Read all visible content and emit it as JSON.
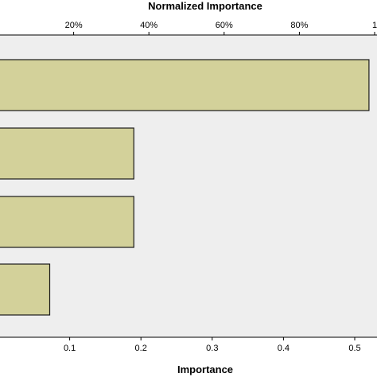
{
  "chart_data": {
    "type": "bar",
    "orientation": "horizontal",
    "title_top": "Normalized Importance",
    "xlabel": "Importance",
    "top_axis": {
      "range": [
        0,
        1
      ],
      "ticks": [
        0.2,
        0.4,
        0.6,
        0.8,
        1.0
      ],
      "tick_labels": [
        "20%",
        "40%",
        "60%",
        "80%",
        "1"
      ]
    },
    "bottom_axis": {
      "range": [
        0,
        0.52
      ],
      "ticks": [
        0.1,
        0.2,
        0.3,
        0.4,
        0.5
      ],
      "tick_labels": [
        "0.1",
        "0.2",
        "0.3",
        "0.4",
        "0.5"
      ]
    },
    "categories": [
      "",
      "",
      "",
      ""
    ],
    "values": [
      0.52,
      0.19,
      0.19,
      0.072
    ],
    "grid": false,
    "colors": {
      "bar_fill": "#d3d19a",
      "bar_stroke": "#1a1a1a",
      "plot_background": "#eeeeee",
      "axis": "#000000"
    }
  }
}
